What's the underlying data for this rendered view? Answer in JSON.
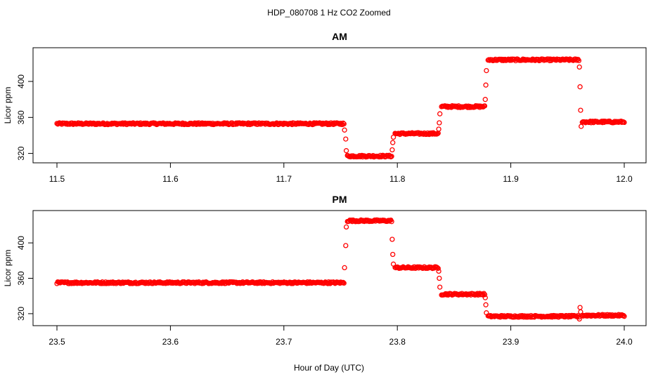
{
  "figure": {
    "title": "HDP_080708  1 Hz CO2 Zoomed",
    "xlabel": "Hour of Day (UTC)"
  },
  "colors": {
    "points": "#ff0000",
    "axes": "#000000"
  },
  "chart_data": [
    {
      "type": "scatter",
      "title": "AM",
      "xlabel": "",
      "ylabel": "Licor ppm",
      "xlim": [
        11.5,
        12.0
      ],
      "ylim": [
        315,
        432
      ],
      "xticks": [
        "11.5",
        "11.6",
        "11.7",
        "11.8",
        "11.9",
        "12.0"
      ],
      "yticks": [
        "320",
        "360",
        "400"
      ],
      "marker": "open-circle",
      "grid": false,
      "series": [
        {
          "segments": [
            {
              "x": [
                11.5,
                11.753
              ],
              "y": 353,
              "noise": 1.0
            },
            {
              "x": [
                11.756,
                11.795
              ],
              "y": 317,
              "noise": 1.0
            },
            {
              "x": [
                11.798,
                11.836
              ],
              "y": 342,
              "noise": 1.0
            },
            {
              "x": [
                11.839,
                11.877
              ],
              "y": 372,
              "noise": 1.0
            },
            {
              "x": [
                11.88,
                11.96
              ],
              "y": 424,
              "noise": 1.0
            },
            {
              "x": [
                11.963,
                12.0
              ],
              "y": 355,
              "noise": 1.0
            }
          ],
          "transitions": [
            {
              "x": 11.7535,
              "y": 346
            },
            {
              "x": 11.7545,
              "y": 336
            },
            {
              "x": 11.755,
              "y": 323
            },
            {
              "x": 11.7955,
              "y": 324
            },
            {
              "x": 11.796,
              "y": 332
            },
            {
              "x": 11.7965,
              "y": 338
            },
            {
              "x": 11.8365,
              "y": 347
            },
            {
              "x": 11.837,
              "y": 354
            },
            {
              "x": 11.8375,
              "y": 364
            },
            {
              "x": 11.8775,
              "y": 380
            },
            {
              "x": 11.878,
              "y": 396
            },
            {
              "x": 11.8785,
              "y": 412
            },
            {
              "x": 11.9605,
              "y": 416
            },
            {
              "x": 11.961,
              "y": 394
            },
            {
              "x": 11.9615,
              "y": 368
            },
            {
              "x": 11.962,
              "y": 350
            }
          ]
        }
      ]
    },
    {
      "type": "scatter",
      "title": "PM",
      "xlabel": "",
      "ylabel": "Licor ppm",
      "xlim": [
        23.5,
        24.0
      ],
      "ylim": [
        312,
        431
      ],
      "xticks": [
        "23.5",
        "23.6",
        "23.7",
        "23.8",
        "23.9",
        "24.0"
      ],
      "yticks": [
        "320",
        "360",
        "400"
      ],
      "marker": "open-circle",
      "grid": false,
      "series": [
        {
          "segments": [
            {
              "x": [
                23.5,
                23.753
              ],
              "y": 355,
              "noise": 1.0
            },
            {
              "x": [
                23.756,
                23.795
              ],
              "y": 425,
              "noise": 1.0
            },
            {
              "x": [
                23.798,
                23.836
              ],
              "y": 372,
              "noise": 1.0
            },
            {
              "x": [
                23.839,
                23.877
              ],
              "y": 342,
              "noise": 1.0
            },
            {
              "x": [
                23.88,
                23.96
              ],
              "y": 317,
              "noise": 1.0
            },
            {
              "x": [
                23.963,
                24.0
              ],
              "y": 318,
              "noise": 1.0
            }
          ],
          "transitions": [
            {
              "x": 23.7535,
              "y": 372
            },
            {
              "x": 23.7545,
              "y": 397
            },
            {
              "x": 23.755,
              "y": 418
            },
            {
              "x": 23.7955,
              "y": 404
            },
            {
              "x": 23.796,
              "y": 387
            },
            {
              "x": 23.7965,
              "y": 376
            },
            {
              "x": 23.8365,
              "y": 368
            },
            {
              "x": 23.837,
              "y": 360
            },
            {
              "x": 23.8375,
              "y": 350
            },
            {
              "x": 23.8775,
              "y": 338
            },
            {
              "x": 23.878,
              "y": 330
            },
            {
              "x": 23.8785,
              "y": 321
            },
            {
              "x": 23.9605,
              "y": 314
            },
            {
              "x": 23.961,
              "y": 327
            },
            {
              "x": 23.9615,
              "y": 322
            }
          ]
        }
      ]
    }
  ]
}
